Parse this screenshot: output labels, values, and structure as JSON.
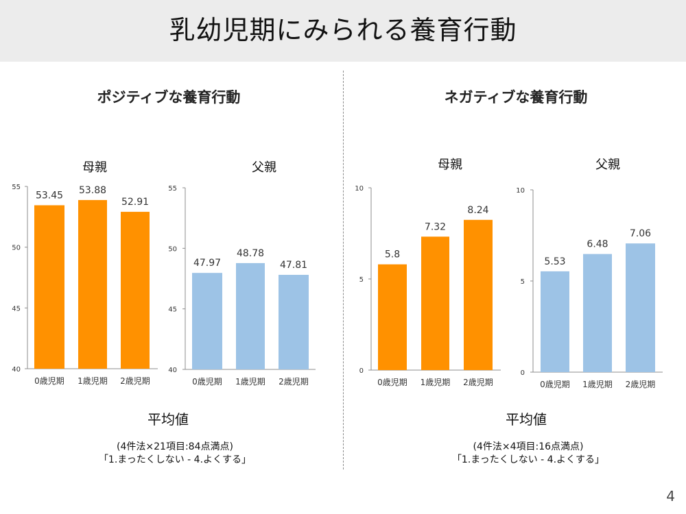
{
  "header": {
    "title": "乳幼児期にみられる養育行動"
  },
  "sections": [
    {
      "title": "ポジティブな養育行動",
      "avg_label": "平均値",
      "note_line1": "(4件法×21項目:84点満点)",
      "note_line2": "「1.まったくしない - 4.よくする」"
    },
    {
      "title": "ネガティブな養育行動",
      "avg_label": "平均値",
      "note_line1": "(4件法×4項目:16点満点)",
      "note_line2": "「1.まったくしない - 4.よくする」"
    }
  ],
  "page_number": "4",
  "colors": {
    "mother": "#ff9100",
    "father": "#9dc3e6",
    "axis": "#8c8c8c"
  },
  "chart_data": [
    {
      "type": "bar",
      "title": "母親",
      "section": "ポジティブな養育行動",
      "categories": [
        "0歳児期",
        "1歳児期",
        "2歳児期"
      ],
      "values": [
        53.45,
        53.88,
        52.91
      ],
      "value_labels": [
        "53.45",
        "53.88",
        "52.91"
      ],
      "ylim": [
        40,
        55
      ],
      "yticks": [
        40,
        45,
        50,
        55
      ],
      "color": "#ff9100",
      "grid": false,
      "xlabel": "",
      "ylabel": ""
    },
    {
      "type": "bar",
      "title": "父親",
      "section": "ポジティブな養育行動",
      "categories": [
        "0歳児期",
        "1歳児期",
        "2歳児期"
      ],
      "values": [
        47.97,
        48.78,
        47.81
      ],
      "value_labels": [
        "47.97",
        "48.78",
        "47.81"
      ],
      "ylim": [
        40,
        55
      ],
      "yticks": [
        40,
        45,
        50,
        55
      ],
      "color": "#9dc3e6",
      "grid": false,
      "xlabel": "",
      "ylabel": ""
    },
    {
      "type": "bar",
      "title": "母親",
      "section": "ネガティブな養育行動",
      "categories": [
        "0歳児期",
        "1歳児期",
        "2歳児期"
      ],
      "values": [
        5.8,
        7.32,
        8.24
      ],
      "value_labels": [
        "5.8",
        "7.32",
        "8.24"
      ],
      "ylim": [
        0,
        10
      ],
      "yticks": [
        0,
        5,
        10
      ],
      "color": "#ff9100",
      "grid": false,
      "xlabel": "",
      "ylabel": ""
    },
    {
      "type": "bar",
      "title": "父親",
      "section": "ネガティブな養育行動",
      "categories": [
        "0歳児期",
        "1歳児期",
        "2歳児期"
      ],
      "values": [
        5.53,
        6.48,
        7.06
      ],
      "value_labels": [
        "5.53",
        "6.48",
        "7.06"
      ],
      "ylim": [
        0,
        10
      ],
      "yticks": [
        0,
        5,
        10
      ],
      "color": "#9dc3e6",
      "grid": false,
      "xlabel": "",
      "ylabel": ""
    }
  ]
}
